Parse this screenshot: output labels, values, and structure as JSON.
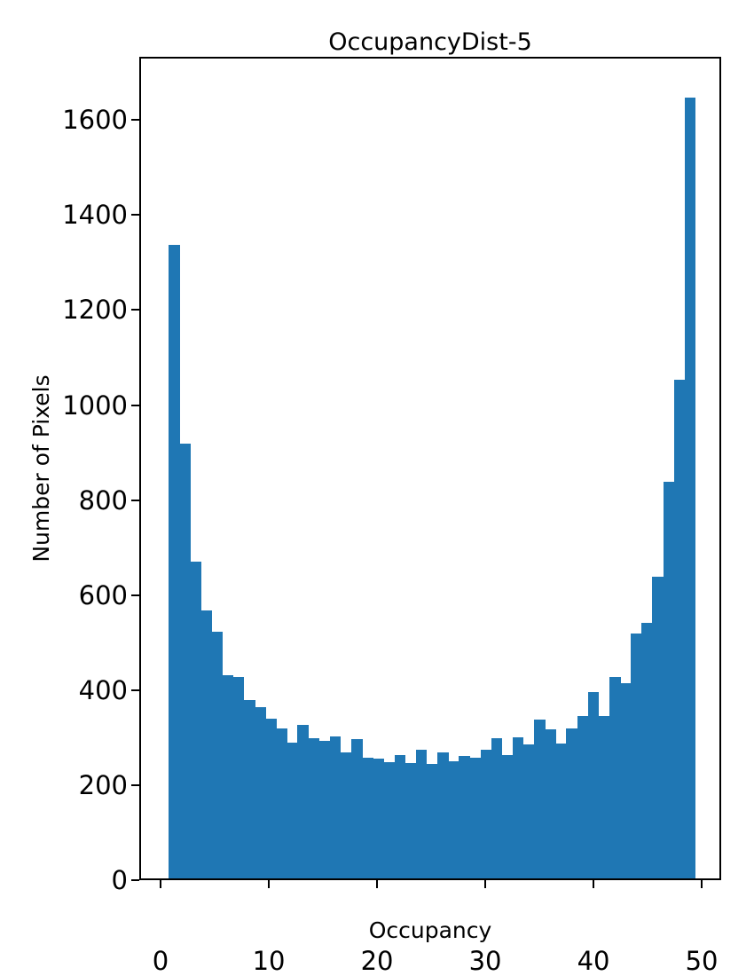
{
  "chart_data": {
    "type": "bar",
    "subtype": "histogram",
    "title": "OccupancyDist-5",
    "xlabel": "Occupancy",
    "ylabel": "Number of Pixels",
    "bar_color": "#1f77b4",
    "axis_color": "#000000",
    "background_color": "#ffffff",
    "grid": false,
    "legend": null,
    "xlim": [
      -1.97,
      51.8
    ],
    "ylim": [
      0,
      1733
    ],
    "x_ticks": [
      0,
      10,
      20,
      30,
      40,
      50
    ],
    "y_ticks": [
      0,
      200,
      400,
      600,
      800,
      1000,
      1200,
      1400,
      1600
    ],
    "bins": {
      "start": 0.74,
      "width": 0.9934,
      "count": 49
    },
    "counts": [
      1338,
      918,
      670,
      567,
      523,
      432,
      428,
      379,
      365,
      340,
      320,
      290,
      326,
      298,
      293,
      302,
      268,
      297,
      258,
      255,
      249,
      263,
      247,
      274,
      245,
      268,
      251,
      262,
      258,
      274,
      298,
      263,
      300,
      285,
      338,
      318,
      288,
      320,
      345,
      395,
      345,
      427,
      415,
      519,
      542,
      639,
      838,
      1053,
      1648
    ]
  }
}
